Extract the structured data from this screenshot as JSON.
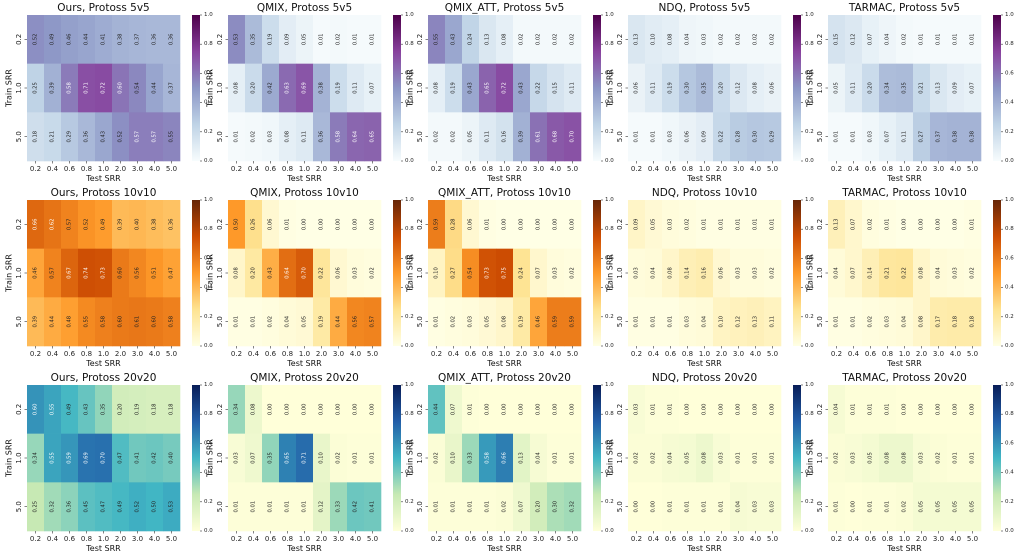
{
  "colormaps": {
    "purple": [
      "#f7fcfd",
      "#bfd3e6",
      "#8c96c6",
      "#88419d",
      "#4d004b"
    ],
    "orange": [
      "#ffffe5",
      "#fee391",
      "#fe9929",
      "#cc4c02",
      "#662506"
    ],
    "blue": [
      "#ffffd9",
      "#c7e9b4",
      "#41b6c4",
      "#225ea8",
      "#081d58"
    ]
  },
  "chart_data": [
    {
      "type": "heatmap",
      "title": "Ours, Protoss 5v5",
      "xlabel": "Test SRR",
      "ylabel": "Train SRR",
      "x": [
        "0.2",
        "0.4",
        "0.6",
        "0.8",
        "1.0",
        "2.0",
        "3.0",
        "4.0",
        "5.0"
      ],
      "y": [
        "0.2",
        "1.0",
        "5.0"
      ],
      "cmap": "purple",
      "vmin": 0,
      "vmax": 1,
      "colorbar_ticks": [
        "0.0",
        "0.2",
        "0.4",
        "0.6",
        "0.8",
        "1.0"
      ],
      "values": [
        [
          0.52,
          0.49,
          0.46,
          0.44,
          0.41,
          0.38,
          0.37,
          0.36,
          0.36
        ],
        [
          0.25,
          0.39,
          0.58,
          0.71,
          0.72,
          0.6,
          0.54,
          0.44,
          0.37
        ],
        [
          0.18,
          0.21,
          0.29,
          0.36,
          0.43,
          0.52,
          0.57,
          0.57,
          0.55
        ]
      ]
    },
    {
      "type": "heatmap",
      "title": "QMIX, Protoss 5v5",
      "xlabel": "Test SRR",
      "ylabel": "Train SRR",
      "x": [
        "0.2",
        "0.4",
        "0.6",
        "0.8",
        "1.0",
        "2.0",
        "3.0",
        "4.0",
        "5.0"
      ],
      "y": [
        "0.2",
        "1.0",
        "5.0"
      ],
      "cmap": "purple",
      "vmin": 0,
      "vmax": 1,
      "colorbar_ticks": [
        "0.0",
        "0.2",
        "0.4",
        "0.6",
        "0.8",
        "1.0"
      ],
      "values": [
        [
          0.53,
          0.35,
          0.19,
          0.09,
          0.05,
          0.01,
          0.02,
          0.01,
          0.01
        ],
        [
          0.08,
          0.2,
          0.42,
          0.63,
          0.69,
          0.38,
          0.19,
          0.11,
          0.07
        ],
        [
          0.01,
          0.02,
          0.03,
          0.08,
          0.11,
          0.36,
          0.58,
          0.64,
          0.65
        ]
      ]
    },
    {
      "type": "heatmap",
      "title": "QMIX_ATT, Protoss 5v5",
      "xlabel": "Test SRR",
      "ylabel": "Train SRR",
      "x": [
        "0.2",
        "0.4",
        "0.6",
        "0.8",
        "1.0",
        "2.0",
        "3.0",
        "4.0",
        "5.0"
      ],
      "y": [
        "0.2",
        "1.0",
        "5.0"
      ],
      "cmap": "purple",
      "vmin": 0,
      "vmax": 1,
      "colorbar_ticks": [
        "0.0",
        "0.2",
        "0.4",
        "0.6",
        "0.8",
        "1.0"
      ],
      "values": [
        [
          0.55,
          0.43,
          0.24,
          0.13,
          0.08,
          0.02,
          0.02,
          0.02,
          0.02
        ],
        [
          0.08,
          0.19,
          0.43,
          0.65,
          0.72,
          0.43,
          0.22,
          0.15,
          0.11
        ],
        [
          0.02,
          0.02,
          0.05,
          0.11,
          0.16,
          0.39,
          0.61,
          0.68,
          0.7
        ]
      ]
    },
    {
      "type": "heatmap",
      "title": "NDQ, Protoss 5v5",
      "xlabel": "Test SRR",
      "ylabel": "Train SRR",
      "x": [
        "0.2",
        "0.4",
        "0.6",
        "0.8",
        "1.0",
        "2.0",
        "3.0",
        "4.0",
        "5.0"
      ],
      "y": [
        "0.2",
        "1.0",
        "5.0"
      ],
      "cmap": "purple",
      "vmin": 0,
      "vmax": 1,
      "colorbar_ticks": [
        "0.0",
        "0.2",
        "0.4",
        "0.6",
        "0.8",
        "1.0"
      ],
      "values": [
        [
          0.13,
          0.1,
          0.08,
          0.04,
          0.03,
          0.02,
          0.02,
          0.02,
          0.02
        ],
        [
          0.06,
          0.11,
          0.19,
          0.3,
          0.35,
          0.2,
          0.12,
          0.08,
          0.06
        ],
        [
          0.01,
          0.01,
          0.03,
          0.06,
          0.09,
          0.22,
          0.28,
          0.3,
          0.29
        ]
      ]
    },
    {
      "type": "heatmap",
      "title": "TARMAC, Protoss 5v5",
      "xlabel": "Test SRR",
      "ylabel": "Train SRR",
      "x": [
        "0.2",
        "0.4",
        "0.6",
        "0.8",
        "1.0",
        "2.0",
        "3.0",
        "4.0",
        "5.0"
      ],
      "y": [
        "0.2",
        "1.0",
        "5.0"
      ],
      "cmap": "purple",
      "vmin": 0,
      "vmax": 1,
      "colorbar_ticks": [
        "0.0",
        "0.2",
        "0.4",
        "0.6",
        "0.8",
        "1.0"
      ],
      "values": [
        [
          0.15,
          0.12,
          0.07,
          0.04,
          0.02,
          0.01,
          0.01,
          0.01,
          0.01
        ],
        [
          0.05,
          0.11,
          0.2,
          0.34,
          0.35,
          0.21,
          0.13,
          0.09,
          0.07
        ],
        [
          0.01,
          0.01,
          0.03,
          0.07,
          0.11,
          0.27,
          0.37,
          0.38,
          0.38
        ]
      ]
    },
    {
      "type": "heatmap",
      "title": "Ours, Protoss 10v10",
      "xlabel": "Test SRR",
      "ylabel": "Train SRR",
      "x": [
        "0.2",
        "0.4",
        "0.6",
        "0.8",
        "1.0",
        "2.0",
        "3.0",
        "4.0",
        "5.0"
      ],
      "y": [
        "0.2",
        "1.0",
        "5.0"
      ],
      "cmap": "orange",
      "vmin": 0,
      "vmax": 1,
      "colorbar_ticks": [
        "0.0",
        "0.2",
        "0.4",
        "0.6",
        "0.8",
        "1.0"
      ],
      "values": [
        [
          0.66,
          0.62,
          0.57,
          0.52,
          0.49,
          0.39,
          0.4,
          0.38,
          0.36
        ],
        [
          0.46,
          0.57,
          0.67,
          0.74,
          0.73,
          0.6,
          0.56,
          0.51,
          0.47
        ],
        [
          0.39,
          0.44,
          0.48,
          0.55,
          0.58,
          0.6,
          0.61,
          0.6,
          0.58
        ]
      ]
    },
    {
      "type": "heatmap",
      "title": "QMIX, Protoss 10v10",
      "xlabel": "Test SRR",
      "ylabel": "Train SRR",
      "x": [
        "0.2",
        "0.4",
        "0.6",
        "0.8",
        "1.0",
        "2.0",
        "3.0",
        "4.0",
        "5.0"
      ],
      "y": [
        "0.2",
        "1.0",
        "5.0"
      ],
      "cmap": "orange",
      "vmin": 0,
      "vmax": 1,
      "colorbar_ticks": [
        "0.0",
        "0.2",
        "0.4",
        "0.6",
        "0.8",
        "1.0"
      ],
      "values": [
        [
          0.5,
          0.26,
          0.06,
          0.01,
          0.0,
          0.0,
          0.0,
          0.0,
          0.0
        ],
        [
          0.08,
          0.2,
          0.43,
          0.64,
          0.7,
          0.22,
          0.06,
          0.03,
          0.02
        ],
        [
          0.01,
          0.01,
          0.02,
          0.04,
          0.05,
          0.19,
          0.44,
          0.56,
          0.57
        ]
      ]
    },
    {
      "type": "heatmap",
      "title": "QMIX_ATT, Protoss 10v10",
      "xlabel": "Test SRR",
      "ylabel": "Train SRR",
      "x": [
        "0.2",
        "0.4",
        "0.6",
        "0.8",
        "1.0",
        "2.0",
        "3.0",
        "4.0",
        "5.0"
      ],
      "y": [
        "0.2",
        "1.0",
        "5.0"
      ],
      "cmap": "orange",
      "vmin": 0,
      "vmax": 1,
      "colorbar_ticks": [
        "0.0",
        "0.2",
        "0.4",
        "0.6",
        "0.8",
        "1.0"
      ],
      "values": [
        [
          0.59,
          0.28,
          0.06,
          0.01,
          0.0,
          0.0,
          0.0,
          0.0,
          0.0
        ],
        [
          0.1,
          0.27,
          0.54,
          0.73,
          0.75,
          0.24,
          0.07,
          0.03,
          0.02
        ],
        [
          0.01,
          0.02,
          0.03,
          0.05,
          0.08,
          0.19,
          0.46,
          0.59,
          0.59
        ]
      ]
    },
    {
      "type": "heatmap",
      "title": "NDQ, Protoss 10v10",
      "xlabel": "Test SRR",
      "ylabel": "Train SRR",
      "x": [
        "0.2",
        "0.4",
        "0.6",
        "0.8",
        "1.0",
        "2.0",
        "3.0",
        "4.0",
        "5.0"
      ],
      "y": [
        "0.2",
        "1.0",
        "5.0"
      ],
      "cmap": "orange",
      "vmin": 0,
      "vmax": 1,
      "colorbar_ticks": [
        "0.0",
        "0.2",
        "0.4",
        "0.6",
        "0.8",
        "1.0"
      ],
      "values": [
        [
          0.09,
          0.05,
          0.03,
          0.02,
          0.01,
          0.01,
          0.01,
          0.01,
          0.01
        ],
        [
          0.03,
          0.04,
          0.08,
          0.14,
          0.16,
          0.06,
          0.03,
          0.03,
          0.02
        ],
        [
          0.01,
          0.01,
          0.01,
          0.03,
          0.04,
          0.1,
          0.12,
          0.13,
          0.11
        ]
      ]
    },
    {
      "type": "heatmap",
      "title": "TARMAC, Protoss 10v10",
      "xlabel": "Test SRR",
      "ylabel": "Train SRR",
      "x": [
        "0.2",
        "0.4",
        "0.6",
        "0.8",
        "1.0",
        "2.0",
        "3.0",
        "4.0",
        "5.0"
      ],
      "y": [
        "0.2",
        "1.0",
        "5.0"
      ],
      "cmap": "orange",
      "vmin": 0,
      "vmax": 1,
      "colorbar_ticks": [
        "0.0",
        "0.2",
        "0.4",
        "0.6",
        "0.8",
        "1.0"
      ],
      "values": [
        [
          0.13,
          0.07,
          0.02,
          0.01,
          0.0,
          0.0,
          0.0,
          0.0,
          0.01
        ],
        [
          0.04,
          0.07,
          0.14,
          0.21,
          0.22,
          0.08,
          0.04,
          0.03,
          0.02
        ],
        [
          0.01,
          0.01,
          0.02,
          0.03,
          0.04,
          0.08,
          0.17,
          0.18,
          0.18
        ]
      ]
    },
    {
      "type": "heatmap",
      "title": "Ours, Protoss 20v20",
      "xlabel": "Test SRR",
      "ylabel": "Train SRR",
      "x": [
        "0.2",
        "0.4",
        "0.6",
        "0.8",
        "1.0",
        "2.0",
        "3.0",
        "4.0",
        "5.0"
      ],
      "y": [
        "0.2",
        "1.0",
        "5.0"
      ],
      "cmap": "blue",
      "vmin": 0,
      "vmax": 1,
      "colorbar_ticks": [
        "0.0",
        "0.2",
        "0.4",
        "0.6",
        "0.8",
        "1.0"
      ],
      "values": [
        [
          0.6,
          0.55,
          0.49,
          0.43,
          0.35,
          0.2,
          0.19,
          0.18,
          0.18
        ],
        [
          0.34,
          0.55,
          0.59,
          0.69,
          0.7,
          0.47,
          0.41,
          0.42,
          0.4
        ],
        [
          0.25,
          0.32,
          0.36,
          0.45,
          0.47,
          0.49,
          0.52,
          0.5,
          0.53
        ]
      ]
    },
    {
      "type": "heatmap",
      "title": "QMIX, Protoss 20v20",
      "xlabel": "Test SRR",
      "ylabel": "Train SRR",
      "x": [
        "0.2",
        "0.4",
        "0.6",
        "0.8",
        "1.0",
        "2.0",
        "3.0",
        "4.0",
        "5.0"
      ],
      "y": [
        "0.2",
        "1.0",
        "5.0"
      ],
      "cmap": "blue",
      "vmin": 0,
      "vmax": 1,
      "colorbar_ticks": [
        "0.0",
        "0.2",
        "0.4",
        "0.6",
        "0.8",
        "1.0"
      ],
      "values": [
        [
          0.34,
          0.08,
          0.0,
          0.0,
          0.0,
          0.0,
          0.0,
          0.0,
          0.0
        ],
        [
          0.03,
          0.07,
          0.35,
          0.65,
          0.71,
          0.1,
          0.02,
          0.01,
          0.01
        ],
        [
          0.01,
          0.01,
          0.01,
          0.01,
          0.01,
          0.12,
          0.33,
          0.42,
          0.41
        ]
      ]
    },
    {
      "type": "heatmap",
      "title": "QMIX_ATT, Protoss 20v20",
      "xlabel": "Test SRR",
      "ylabel": "Train SRR",
      "x": [
        "0.2",
        "0.4",
        "0.6",
        "0.8",
        "1.0",
        "2.0",
        "3.0",
        "4.0",
        "5.0"
      ],
      "y": [
        "0.2",
        "1.0",
        "5.0"
      ],
      "cmap": "blue",
      "vmin": 0,
      "vmax": 1,
      "colorbar_ticks": [
        "0.0",
        "0.2",
        "0.4",
        "0.6",
        "0.8",
        "1.0"
      ],
      "values": [
        [
          0.44,
          0.07,
          0.01,
          0.0,
          0.0,
          0.0,
          0.0,
          0.0,
          0.0
        ],
        [
          0.02,
          0.1,
          0.33,
          0.58,
          0.66,
          0.13,
          0.04,
          0.01,
          0.01
        ],
        [
          0.01,
          0.01,
          0.01,
          0.01,
          0.02,
          0.07,
          0.2,
          0.3,
          0.32
        ]
      ]
    },
    {
      "type": "heatmap",
      "title": "NDQ, Protoss 20v20",
      "xlabel": "Test SRR",
      "ylabel": "Train SRR",
      "x": [
        "0.2",
        "0.4",
        "0.6",
        "0.8",
        "1.0",
        "2.0",
        "3.0",
        "4.0",
        "5.0"
      ],
      "y": [
        "0.2",
        "1.0",
        "5.0"
      ],
      "cmap": "blue",
      "vmin": 0,
      "vmax": 1,
      "colorbar_ticks": [
        "0.0",
        "0.2",
        "0.4",
        "0.6",
        "0.8",
        "1.0"
      ],
      "values": [
        [
          0.03,
          0.01,
          0.01,
          0.0,
          0.0,
          0.0,
          0.0,
          0.0,
          0.0
        ],
        [
          0.02,
          0.02,
          0.04,
          0.05,
          0.08,
          0.03,
          0.01,
          0.01,
          0.01
        ],
        [
          0.0,
          0.0,
          0.01,
          0.01,
          0.01,
          0.01,
          0.04,
          0.03,
          0.03
        ]
      ]
    },
    {
      "type": "heatmap",
      "title": "TARMAC, Protoss 20v20",
      "xlabel": "Test SRR",
      "ylabel": "Train SRR",
      "x": [
        "0.2",
        "0.4",
        "0.6",
        "0.8",
        "1.0",
        "2.0",
        "3.0",
        "4.0",
        "5.0"
      ],
      "y": [
        "0.2",
        "1.0",
        "5.0"
      ],
      "cmap": "blue",
      "vmin": 0,
      "vmax": 1,
      "colorbar_ticks": [
        "0.0",
        "0.2",
        "0.4",
        "0.6",
        "0.8",
        "1.0"
      ],
      "values": [
        [
          0.04,
          0.01,
          0.01,
          0.01,
          0.0,
          0.0,
          0.0,
          0.0,
          0.0
        ],
        [
          0.02,
          0.03,
          0.05,
          0.08,
          0.08,
          0.03,
          0.02,
          0.01,
          0.01
        ],
        [
          0.01,
          0.0,
          0.01,
          0.01,
          0.02,
          0.05,
          0.05,
          0.05,
          0.05
        ]
      ]
    }
  ]
}
